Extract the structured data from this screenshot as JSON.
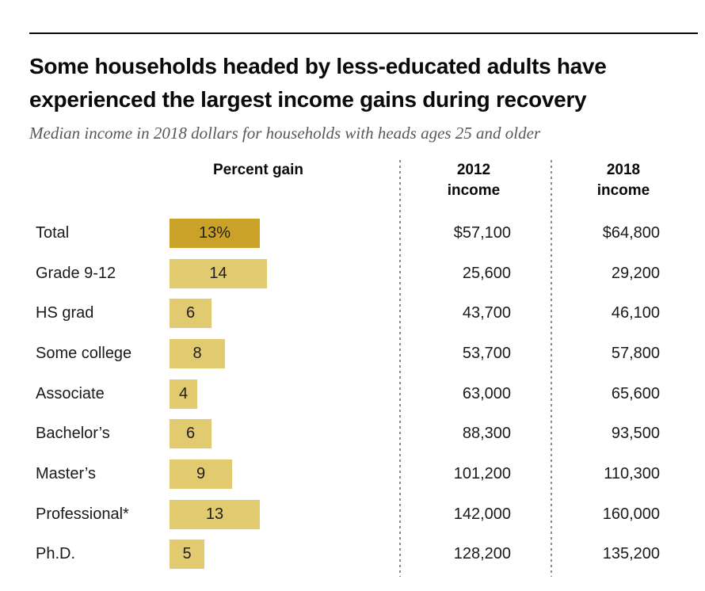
{
  "title": {
    "lines": [
      "Some households headed by less-educated adults have",
      "experienced the largest income gains during recovery"
    ]
  },
  "subtitle": "Median income in 2018 dollars for households with heads ages 25 and older",
  "columns": {
    "percent_gain": {
      "label": "Percent gain"
    },
    "income_2012": {
      "year": "2012",
      "word": "income"
    },
    "income_2018": {
      "year": "2018",
      "word": "income"
    }
  },
  "chart_data": {
    "type": "bar",
    "orientation": "horizontal",
    "title": "Some households headed by less-educated adults have experienced the largest income gains during recovery",
    "subtitle": "Median income in 2018 dollars for households with heads ages 25 and older",
    "categories": [
      "Total",
      "Grade 9-12",
      "HS grad",
      "Some college",
      "Associate",
      "Bachelor’s",
      "Master’s",
      "Professional*",
      "Ph.D."
    ],
    "percent_gain_values": [
      13,
      14,
      6,
      8,
      4,
      6,
      9,
      13,
      5
    ],
    "bar_labels": [
      "13%",
      "14",
      "6",
      "8",
      "4",
      "6",
      "9",
      "13",
      "5"
    ],
    "income_2012": [
      "$57,100",
      "25,600",
      "43,700",
      "53,700",
      "63,000",
      "88,300",
      "101,200",
      "142,000",
      "128,200"
    ],
    "income_2018": [
      "$64,800",
      "29,200",
      "46,100",
      "57,800",
      "65,600",
      "93,500",
      "110,300",
      "160,000",
      "135,200"
    ],
    "colors": {
      "highlight_bar": "#C9A227",
      "bar": "#E1CA70",
      "divider": "#8a8a8a",
      "text": "#1a1a1a"
    },
    "legend": "none",
    "grid": false,
    "axis": "none (value labels printed inside bars)"
  }
}
